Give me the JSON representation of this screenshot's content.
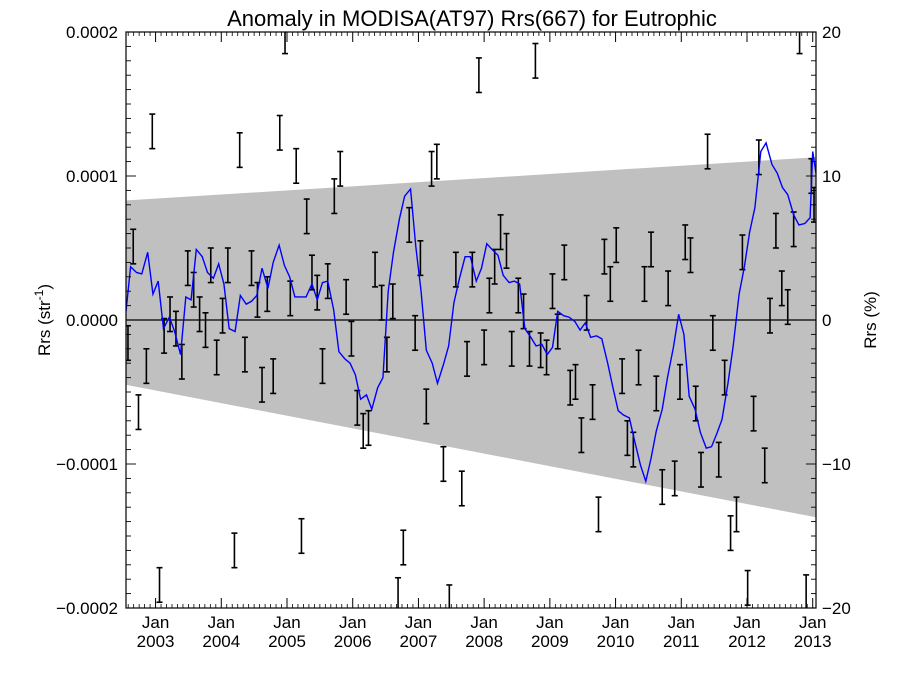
{
  "chart_data": {
    "type": "line",
    "title": "Anomaly in MODISA(AT97) Rrs(667) for Eutrophic",
    "ylabel_left": "Rrs (str",
    "ylabel_left_sup": "-1",
    "ylabel_left_end": ")",
    "ylabel_right": "Rrs (%)",
    "ylim_left": [
      -0.0002,
      0.0002
    ],
    "ylim_right": [
      -20,
      20
    ],
    "xlim": [
      2002.55,
      2013.05
    ],
    "yticks_left": [
      "0.0002",
      "0.0001",
      "0.0000",
      "−0.0001",
      "−0.0002"
    ],
    "yticks_left_values": [
      0.0002,
      0.0001,
      0,
      -0.0001,
      -0.0002
    ],
    "yticks_right": [
      "20",
      "10",
      "0",
      "−10",
      "−20"
    ],
    "yticks_right_values": [
      20,
      10,
      0,
      -10,
      -20
    ],
    "xticks_month": "Jan",
    "xticks_years": [
      "2003",
      "2004",
      "2005",
      "2006",
      "2007",
      "2008",
      "2009",
      "2010",
      "2011",
      "2012",
      "2013"
    ],
    "xticks_values": [
      2003,
      2004,
      2005,
      2006,
      2007,
      2008,
      2009,
      2010,
      2011,
      2012,
      2013
    ],
    "colors": {
      "line": "#0000ff",
      "band": "#c0c0c0",
      "errorbar": "#000000"
    },
    "band": {
      "x": [
        2002.55,
        2013.05
      ],
      "upper": [
        8.3e-05,
        0.000113
      ],
      "lower": [
        -4.5e-05,
        -0.000137
      ]
    },
    "series": [
      {
        "x": [
          2002.55,
          2002.62,
          2002.71,
          2002.79,
          2002.88,
          2002.96,
          2003.04,
          2003.12,
          2003.21,
          2003.29,
          2003.38,
          2003.46,
          2003.54,
          2003.62,
          2003.71,
          2003.79,
          2003.88,
          2003.96,
          2004.04,
          2004.12,
          2004.21,
          2004.29,
          2004.38,
          2004.46,
          2004.54,
          2004.62,
          2004.71,
          2004.79,
          2004.88,
          2004.96,
          2005.04,
          2005.12,
          2005.21,
          2005.29,
          2005.38,
          2005.46,
          2005.54,
          2005.62,
          2005.71,
          2005.79,
          2005.88,
          2005.96,
          2006.04,
          2006.12,
          2006.21,
          2006.29,
          2006.38,
          2006.46,
          2006.54,
          2006.62,
          2006.71,
          2006.79,
          2006.88,
          2006.96,
          2007.04,
          2007.12,
          2007.21,
          2007.29,
          2007.38,
          2007.46,
          2007.54,
          2007.62,
          2007.71,
          2007.79,
          2007.88,
          2007.96,
          2008.04,
          2008.12,
          2008.21,
          2008.29,
          2008.38,
          2008.46,
          2008.54,
          2008.62,
          2008.71,
          2008.79,
          2008.88,
          2008.96,
          2009.04,
          2009.12,
          2009.21,
          2009.29,
          2009.38,
          2009.46,
          2009.54,
          2009.62,
          2009.71,
          2009.79,
          2009.88,
          2009.96,
          2010.04,
          2010.12,
          2010.21,
          2010.29,
          2010.38,
          2010.46,
          2010.54,
          2010.62,
          2010.71,
          2010.79,
          2010.88,
          2010.96,
          2011.04,
          2011.12,
          2011.21,
          2011.29,
          2011.38,
          2011.46,
          2011.54,
          2011.62,
          2011.71,
          2011.79,
          2011.88,
          2011.96,
          2012.04,
          2012.12,
          2012.21,
          2012.29,
          2012.38,
          2012.46,
          2012.54,
          2012.62,
          2012.71,
          2012.79,
          2012.88,
          2012.96,
          2013.0,
          2013.05
        ],
        "values": [
          6e-06,
          3.7e-05,
          3.3e-05,
          3.2e-05,
          4.7e-05,
          1.8e-05,
          2.7e-05,
          -6e-06,
          2e-06,
          -8e-06,
          -2.4e-05,
          1.6e-05,
          1.4e-05,
          4.9e-05,
          4.4e-05,
          3.3e-05,
          2.9e-05,
          3.9e-05,
          2.5e-05,
          -6e-06,
          -8e-06,
          1.7e-05,
          1.1e-05,
          1.3e-05,
          1.7e-05,
          3.6e-05,
          2.2e-05,
          4e-05,
          5.2e-05,
          3.8e-05,
          3e-05,
          1.6e-05,
          1.6e-05,
          1.6e-05,
          2.5e-05,
          1.4e-05,
          2.6e-05,
          2.7e-05,
          7e-06,
          -2.2e-05,
          -2.7e-05,
          -3e-05,
          -3.8e-05,
          -5.5e-05,
          -5.2e-05,
          -6.2e-05,
          -4.7e-05,
          -4e-05,
          2e-05,
          4.7e-05,
          7e-05,
          8.6e-05,
          9.1e-05,
          5.1e-05,
          2e-05,
          -2.1e-05,
          -3e-05,
          -4.4e-05,
          -3.1e-05,
          -1.8e-05,
          1.2e-05,
          2.8e-05,
          4.4e-05,
          4.4e-05,
          2.7e-05,
          3.6e-05,
          5.3e-05,
          4.9e-05,
          4.5e-05,
          3.1e-05,
          2.6e-05,
          2.7e-05,
          2.5e-05,
          -6e-06,
          -1.2e-05,
          -1.8e-05,
          -1.7e-05,
          -2.4e-05,
          -1.9e-05,
          6e-06,
          3e-06,
          2e-06,
          -1e-06,
          -7e-06,
          -2e-06,
          -1.2e-05,
          -1.1e-05,
          -1.3e-05,
          -3e-05,
          -4.7e-05,
          -6.3e-05,
          -6.6e-05,
          -6.8e-05,
          -8.4e-05,
          -0.000101,
          -0.000112,
          -9.6e-05,
          -7.7e-05,
          -6.2e-05,
          -4e-05,
          -1.9e-05,
          4e-06,
          -1e-05,
          -5.3e-05,
          -6.2e-05,
          -7.8e-05,
          -8.9e-05,
          -8.8e-05,
          -7.9e-05,
          -6.9e-05,
          -4.4e-05,
          -1.8e-05,
          1.8e-05,
          3.7e-05,
          6.1e-05,
          7.8e-05,
          0.000117,
          0.000123,
          0.000108,
          0.000102,
          9.2e-05,
          8.7e-05,
          7.3e-05,
          6.6e-05,
          6.7e-05,
          7.1e-05,
          0.000117,
          0.000102
        ]
      }
    ],
    "errorbars": {
      "x": [
        2002.58,
        2002.66,
        2002.74,
        2002.86,
        2002.95,
        2003.06,
        2003.13,
        2003.22,
        2003.31,
        2003.4,
        2003.49,
        2003.58,
        2003.67,
        2003.76,
        2003.84,
        2003.93,
        2004.02,
        2004.1,
        2004.2,
        2004.28,
        2004.36,
        2004.46,
        2004.55,
        2004.62,
        2004.7,
        2004.79,
        2004.89,
        2004.97,
        2005.05,
        2005.14,
        2005.22,
        2005.3,
        2005.38,
        2005.46,
        2005.54,
        2005.62,
        2005.72,
        2005.81,
        2005.9,
        2005.98,
        2006.07,
        2006.16,
        2006.24,
        2006.34,
        2006.44,
        2006.52,
        2006.61,
        2006.69,
        2006.77,
        2006.86,
        2006.95,
        2007.03,
        2007.12,
        2007.2,
        2007.28,
        2007.38,
        2007.47,
        2007.57,
        2007.66,
        2007.74,
        2007.82,
        2007.92,
        2008.0,
        2008.08,
        2008.16,
        2008.25,
        2008.34,
        2008.42,
        2008.52,
        2008.6,
        2008.69,
        2008.78,
        2008.86,
        2008.95,
        2009.04,
        2009.12,
        2009.22,
        2009.31,
        2009.39,
        2009.48,
        2009.56,
        2009.65,
        2009.74,
        2009.83,
        2009.92,
        2010.01,
        2010.1,
        2010.18,
        2010.27,
        2010.35,
        2010.44,
        2010.54,
        2010.62,
        2010.71,
        2010.8,
        2010.9,
        2010.98,
        2011.06,
        2011.14,
        2011.22,
        2011.3,
        2011.4,
        2011.48,
        2011.57,
        2011.66,
        2011.75,
        2011.84,
        2011.93,
        2012.01,
        2012.1,
        2012.18,
        2012.27,
        2012.35,
        2012.44,
        2012.53,
        2012.62,
        2012.71,
        2012.8,
        2012.9,
        2012.98,
        2013.02
      ],
      "y": [
        -1.6e-05,
        5.1e-05,
        -6.4e-05,
        -3.2e-05,
        0.000131,
        -0.000184,
        -1.1e-05,
        4e-06,
        -6e-06,
        -2.9e-05,
        3.6e-05,
        2.1e-05,
        4e-06,
        -7e-06,
        3.8e-05,
        -2.6e-05,
        3e-06,
        3.8e-05,
        -0.00016,
        0.000118,
        -2.4e-05,
        3.6e-05,
        1.4e-05,
        -4.5e-05,
        1.8e-05,
        -3.9e-05,
        0.00013,
        0.000197,
        1.5e-05,
        0.000107,
        -0.00015,
        7.2e-05,
        3.3e-05,
        1.9e-05,
        -3.2e-05,
        2.7e-05,
        8.6e-05,
        0.000105,
        1.6e-05,
        -1.3e-05,
        -6.1e-05,
        -7.7e-05,
        -7.5e-05,
        3.5e-05,
        1.2e-05,
        -2.4e-05,
        1.3e-05,
        -0.000191,
        -0.000158,
        6.6e-05,
        -9e-06,
        4.3e-05,
        -6e-05,
        0.000105,
        0.00011,
        -0.0001,
        -0.000196,
        3.5e-05,
        -0.000117,
        -2.7e-05,
        3.5e-05,
        0.00017,
        -1.9e-05,
        1.7e-05,
        3.7e-05,
        6.1e-05,
        4.8e-05,
        -2e-05,
        1.7e-05,
        6e-06,
        -2e-05,
        0.00018,
        -2.1e-05,
        -2.6e-05,
        2e-05,
        -8e-06,
        4e-05,
        -4.7e-05,
        -4.3e-05,
        -8e-05,
        5e-06,
        -5.7e-05,
        -0.000135,
        4.4e-05,
        2.5e-05,
        5.2e-05,
        -3.9e-05,
        -8.2e-05,
        -9e-05,
        -3.3e-05,
        2.5e-05,
        4.9e-05,
        -5.1e-05,
        -0.000116,
        2.2e-05,
        -0.00011,
        -4.3e-05,
        5.4e-05,
        4.5e-05,
        -5.8e-05,
        -0.000104,
        0.000117,
        -9e-06,
        -9.7e-05,
        -4e-05,
        -0.000148,
        -0.000135,
        4.7e-05,
        -0.000186,
        -6.5e-05,
        0.000113,
        -0.000101,
        3e-06,
        6.2e-05,
        2.2e-05,
        9e-06,
        6.3e-05,
        0.000197,
        -0.000189,
        0.0001,
        8e-05
      ],
      "err": 1.2e-05
    }
  }
}
